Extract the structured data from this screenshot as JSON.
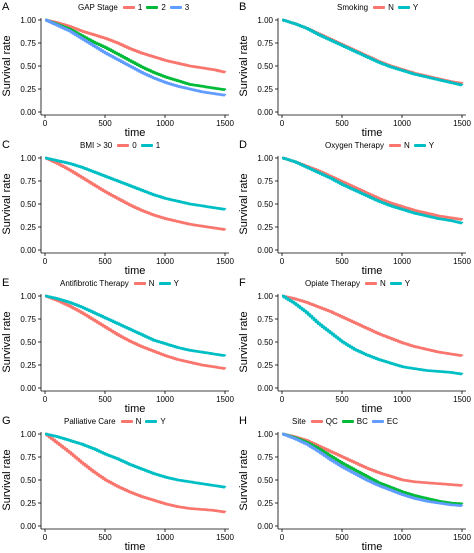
{
  "chart_data": [
    {
      "panel": "A",
      "type": "line",
      "xlabel": "time",
      "ylabel": "Survival rate",
      "xlim": [
        0,
        1500
      ],
      "ylim": [
        0,
        1
      ],
      "xticks": [
        "0",
        "500",
        "1000",
        "1500"
      ],
      "yticks": [
        "0.00",
        "0.25",
        "0.50",
        "0.75",
        "1.00"
      ],
      "legend_title": "GAP Stage",
      "series": [
        {
          "name": "1",
          "color": "#F8766D",
          "x": [
            0,
            100,
            200,
            300,
            400,
            500,
            600,
            700,
            800,
            900,
            1000,
            1100,
            1200,
            1300,
            1400,
            1500
          ],
          "y": [
            1,
            0.97,
            0.93,
            0.88,
            0.84,
            0.8,
            0.75,
            0.69,
            0.64,
            0.6,
            0.56,
            0.53,
            0.5,
            0.48,
            0.46,
            0.43
          ]
        },
        {
          "name": "2",
          "color": "#00BA38",
          "x": [
            0,
            100,
            200,
            300,
            400,
            500,
            600,
            700,
            800,
            900,
            1000,
            1100,
            1200,
            1300,
            1400,
            1500
          ],
          "y": [
            1,
            0.95,
            0.9,
            0.83,
            0.76,
            0.7,
            0.63,
            0.56,
            0.49,
            0.43,
            0.38,
            0.34,
            0.3,
            0.28,
            0.26,
            0.24
          ]
        },
        {
          "name": "3",
          "color": "#619CFF",
          "x": [
            0,
            100,
            200,
            300,
            400,
            500,
            600,
            700,
            800,
            900,
            1000,
            1100,
            1200,
            1300,
            1400,
            1500
          ],
          "y": [
            1,
            0.94,
            0.88,
            0.8,
            0.72,
            0.64,
            0.57,
            0.5,
            0.43,
            0.37,
            0.32,
            0.28,
            0.25,
            0.22,
            0.2,
            0.18
          ]
        }
      ]
    },
    {
      "panel": "B",
      "type": "line",
      "xlabel": "time",
      "ylabel": "Survival rate",
      "xlim": [
        0,
        1500
      ],
      "ylim": [
        0,
        1
      ],
      "xticks": [
        "0",
        "500",
        "1000",
        "1500"
      ],
      "yticks": [
        "0.00",
        "0.25",
        "0.50",
        "0.75",
        "1.00"
      ],
      "legend_title": "Smoking",
      "series": [
        {
          "name": "N",
          "color": "#F8766D",
          "x": [
            0,
            100,
            200,
            300,
            400,
            500,
            600,
            700,
            800,
            900,
            1000,
            1100,
            1200,
            1300,
            1400,
            1500
          ],
          "y": [
            1,
            0.96,
            0.91,
            0.85,
            0.79,
            0.73,
            0.67,
            0.61,
            0.55,
            0.5,
            0.46,
            0.42,
            0.39,
            0.36,
            0.33,
            0.31
          ]
        },
        {
          "name": "Y",
          "color": "#00BFC4",
          "x": [
            0,
            100,
            200,
            300,
            400,
            500,
            600,
            700,
            800,
            900,
            1000,
            1100,
            1200,
            1300,
            1400,
            1500
          ],
          "y": [
            1,
            0.96,
            0.91,
            0.84,
            0.78,
            0.72,
            0.66,
            0.6,
            0.54,
            0.49,
            0.45,
            0.41,
            0.38,
            0.35,
            0.32,
            0.29
          ]
        }
      ]
    },
    {
      "panel": "C",
      "type": "line",
      "xlabel": "time",
      "ylabel": "Survival rate",
      "xlim": [
        0,
        1500
      ],
      "ylim": [
        0,
        1
      ],
      "xticks": [
        "0",
        "500",
        "1000",
        "1500"
      ],
      "yticks": [
        "0.00",
        "0.25",
        "0.50",
        "0.75",
        "1.00"
      ],
      "legend_title": "BMI > 30",
      "series": [
        {
          "name": "0",
          "color": "#F8766D",
          "x": [
            0,
            100,
            200,
            300,
            400,
            500,
            600,
            700,
            800,
            900,
            1000,
            1100,
            1200,
            1300,
            1400,
            1500
          ],
          "y": [
            1,
            0.94,
            0.87,
            0.79,
            0.71,
            0.63,
            0.56,
            0.49,
            0.43,
            0.38,
            0.34,
            0.31,
            0.28,
            0.26,
            0.24,
            0.22
          ]
        },
        {
          "name": "1",
          "color": "#00BFC4",
          "x": [
            0,
            100,
            200,
            300,
            400,
            500,
            600,
            700,
            800,
            900,
            1000,
            1100,
            1200,
            1300,
            1400,
            1500
          ],
          "y": [
            1,
            0.97,
            0.94,
            0.9,
            0.85,
            0.8,
            0.75,
            0.7,
            0.65,
            0.6,
            0.56,
            0.53,
            0.5,
            0.48,
            0.46,
            0.44
          ]
        }
      ]
    },
    {
      "panel": "D",
      "type": "line",
      "xlabel": "time",
      "ylabel": "Survival rate",
      "xlim": [
        0,
        1500
      ],
      "ylim": [
        0,
        1
      ],
      "xticks": [
        "0",
        "500",
        "1000",
        "1500"
      ],
      "yticks": [
        "0.00",
        "0.25",
        "0.50",
        "0.75",
        "1.00"
      ],
      "legend_title": "Oxygen Therapy",
      "series": [
        {
          "name": "N",
          "color": "#F8766D",
          "x": [
            0,
            100,
            200,
            300,
            400,
            500,
            600,
            700,
            800,
            900,
            1000,
            1100,
            1200,
            1300,
            1400,
            1500
          ],
          "y": [
            1,
            0.96,
            0.91,
            0.86,
            0.8,
            0.74,
            0.68,
            0.62,
            0.56,
            0.51,
            0.47,
            0.43,
            0.4,
            0.37,
            0.35,
            0.33
          ]
        },
        {
          "name": "Y",
          "color": "#00BFC4",
          "x": [
            0,
            100,
            200,
            300,
            400,
            500,
            600,
            700,
            800,
            900,
            1000,
            1100,
            1200,
            1300,
            1400,
            1500
          ],
          "y": [
            1,
            0.96,
            0.9,
            0.84,
            0.78,
            0.71,
            0.65,
            0.59,
            0.53,
            0.48,
            0.44,
            0.4,
            0.37,
            0.34,
            0.32,
            0.29
          ]
        }
      ]
    },
    {
      "panel": "E",
      "type": "line",
      "xlabel": "time",
      "ylabel": "Survival rate",
      "xlim": [
        0,
        1500
      ],
      "ylim": [
        0,
        1
      ],
      "xticks": [
        "0",
        "500",
        "1000",
        "1500"
      ],
      "yticks": [
        "0.00",
        "0.25",
        "0.50",
        "0.75",
        "1.00"
      ],
      "legend_title": "Antifibrotic Therapy",
      "series": [
        {
          "name": "N",
          "color": "#F8766D",
          "x": [
            0,
            100,
            200,
            300,
            400,
            500,
            600,
            700,
            800,
            900,
            1000,
            1100,
            1200,
            1300,
            1400,
            1500
          ],
          "y": [
            1,
            0.95,
            0.89,
            0.82,
            0.74,
            0.66,
            0.58,
            0.51,
            0.45,
            0.4,
            0.35,
            0.31,
            0.28,
            0.25,
            0.23,
            0.21
          ]
        },
        {
          "name": "Y",
          "color": "#00BFC4",
          "x": [
            0,
            100,
            200,
            300,
            400,
            500,
            600,
            700,
            800,
            900,
            1000,
            1100,
            1200,
            1300,
            1400,
            1500
          ],
          "y": [
            1,
            0.97,
            0.93,
            0.88,
            0.82,
            0.76,
            0.7,
            0.64,
            0.58,
            0.52,
            0.48,
            0.44,
            0.41,
            0.39,
            0.37,
            0.35
          ]
        }
      ]
    },
    {
      "panel": "F",
      "type": "line",
      "xlabel": "time",
      "ylabel": "Survival rate",
      "xlim": [
        0,
        1500
      ],
      "ylim": [
        0,
        1
      ],
      "xticks": [
        "0",
        "500",
        "1000",
        "1500"
      ],
      "yticks": [
        "0.00",
        "0.25",
        "0.50",
        "0.75",
        "1.00"
      ],
      "legend_title": "Opiate Therapy",
      "series": [
        {
          "name": "N",
          "color": "#F8766D",
          "x": [
            0,
            100,
            200,
            300,
            400,
            500,
            600,
            700,
            800,
            900,
            1000,
            1100,
            1200,
            1300,
            1400,
            1500
          ],
          "y": [
            1,
            0.97,
            0.93,
            0.88,
            0.83,
            0.77,
            0.71,
            0.65,
            0.59,
            0.54,
            0.49,
            0.45,
            0.42,
            0.39,
            0.37,
            0.35
          ]
        },
        {
          "name": "Y",
          "color": "#00BFC4",
          "x": [
            0,
            100,
            200,
            300,
            400,
            500,
            600,
            700,
            800,
            900,
            1000,
            1100,
            1200,
            1300,
            1400,
            1500
          ],
          "y": [
            1,
            0.92,
            0.82,
            0.7,
            0.6,
            0.5,
            0.42,
            0.36,
            0.31,
            0.27,
            0.23,
            0.21,
            0.19,
            0.18,
            0.17,
            0.15
          ]
        }
      ]
    },
    {
      "panel": "G",
      "type": "line",
      "xlabel": "time",
      "ylabel": "Survival rate",
      "xlim": [
        0,
        1500
      ],
      "ylim": [
        0,
        1
      ],
      "xticks": [
        "0",
        "500",
        "1000",
        "1500"
      ],
      "yticks": [
        "0.00",
        "0.25",
        "0.50",
        "0.75",
        "1.00"
      ],
      "legend_title": "Palliative Care",
      "series": [
        {
          "name": "N",
          "color": "#F8766D",
          "x": [
            0,
            100,
            200,
            300,
            400,
            500,
            600,
            700,
            800,
            900,
            1000,
            1100,
            1200,
            1300,
            1400,
            1500
          ],
          "y": [
            1,
            0.9,
            0.8,
            0.69,
            0.59,
            0.5,
            0.43,
            0.37,
            0.32,
            0.28,
            0.24,
            0.21,
            0.19,
            0.18,
            0.17,
            0.15
          ]
        },
        {
          "name": "Y",
          "color": "#00BFC4",
          "x": [
            0,
            100,
            200,
            300,
            400,
            500,
            600,
            700,
            800,
            900,
            1000,
            1100,
            1200,
            1300,
            1400,
            1500
          ],
          "y": [
            1,
            0.97,
            0.93,
            0.89,
            0.84,
            0.78,
            0.73,
            0.67,
            0.62,
            0.57,
            0.53,
            0.5,
            0.48,
            0.46,
            0.44,
            0.42
          ]
        }
      ]
    },
    {
      "panel": "H",
      "type": "line",
      "xlabel": "time",
      "ylabel": "Survival rate",
      "xlim": [
        0,
        1500
      ],
      "ylim": [
        0,
        1
      ],
      "xticks": [
        "0",
        "500",
        "1000",
        "1500"
      ],
      "yticks": [
        "0.00",
        "0.25",
        "0.50",
        "0.75",
        "1.00"
      ],
      "legend_title": "Site",
      "series": [
        {
          "name": "QC",
          "color": "#F8766D",
          "x": [
            0,
            100,
            200,
            300,
            400,
            500,
            600,
            700,
            800,
            900,
            1000,
            1100,
            1200,
            1300,
            1400,
            1500
          ],
          "y": [
            1,
            0.97,
            0.93,
            0.87,
            0.81,
            0.75,
            0.69,
            0.63,
            0.58,
            0.54,
            0.5,
            0.48,
            0.47,
            0.46,
            0.45,
            0.44
          ]
        },
        {
          "name": "BC",
          "color": "#00BA38",
          "x": [
            0,
            100,
            200,
            300,
            400,
            500,
            600,
            700,
            800,
            900,
            1000,
            1100,
            1200,
            1300,
            1400,
            1500
          ],
          "y": [
            1,
            0.96,
            0.91,
            0.84,
            0.76,
            0.68,
            0.61,
            0.54,
            0.47,
            0.42,
            0.37,
            0.33,
            0.3,
            0.27,
            0.25,
            0.24
          ]
        },
        {
          "name": "EC",
          "color": "#619CFF",
          "x": [
            0,
            100,
            200,
            300,
            400,
            500,
            600,
            700,
            800,
            900,
            1000,
            1100,
            1200,
            1300,
            1400,
            1500
          ],
          "y": [
            1,
            0.95,
            0.89,
            0.81,
            0.72,
            0.64,
            0.57,
            0.5,
            0.44,
            0.39,
            0.34,
            0.3,
            0.27,
            0.25,
            0.23,
            0.22
          ]
        }
      ]
    }
  ]
}
